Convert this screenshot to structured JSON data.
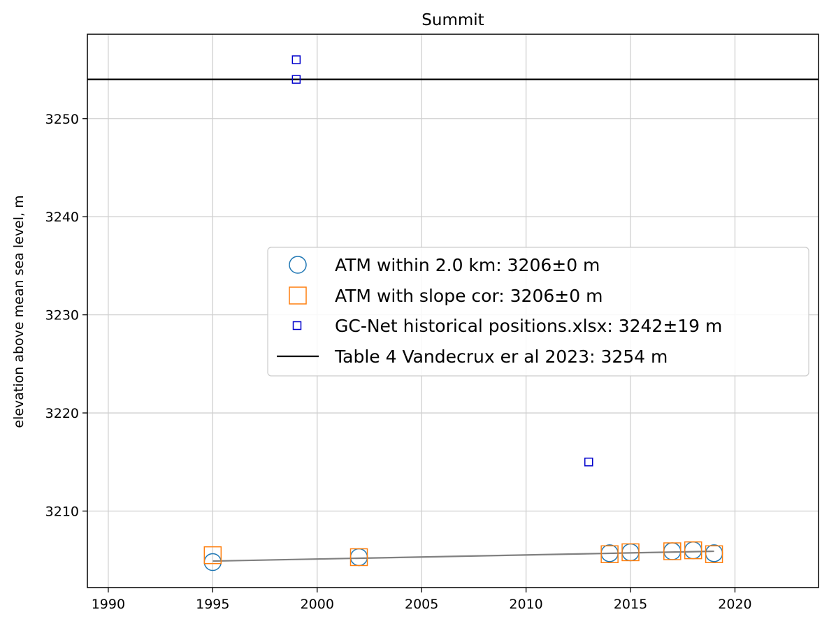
{
  "chart_data": {
    "type": "scatter",
    "title": "Summit",
    "xlabel": "",
    "ylabel": "elevation above mean sea level, m",
    "xlim": [
      1989,
      2024
    ],
    "ylim": [
      3202.2,
      3258.6
    ],
    "xticks": [
      1990,
      1995,
      2000,
      2005,
      2010,
      2015,
      2020
    ],
    "yticks": [
      3210,
      3220,
      3230,
      3240,
      3250
    ],
    "grid": true,
    "legend_position": "center-right",
    "series": [
      {
        "name": "ATM within 2.0 km: 3206±0 m",
        "marker": "circle",
        "color": "#1f77b4",
        "x": [
          1995,
          2002,
          2014,
          2015,
          2017,
          2018,
          2019
        ],
        "y": [
          3204.8,
          3205.3,
          3205.7,
          3205.8,
          3205.9,
          3206.0,
          3205.7
        ]
      },
      {
        "name": "ATM with slope cor: 3206±0 m",
        "marker": "square",
        "color": "#ff7f0e",
        "x": [
          1995,
          2002,
          2014,
          2015,
          2017,
          2018,
          2019
        ],
        "y": [
          3205.5,
          3205.3,
          3205.6,
          3205.8,
          3205.9,
          3206.0,
          3205.6
        ]
      },
      {
        "name": "GC-Net historical positions.xlsx: 3242±19 m",
        "marker": "small-square",
        "color": "#0000cc",
        "x": [
          1999,
          1999,
          2013
        ],
        "y": [
          3256.0,
          3254.0,
          3215.0
        ]
      }
    ],
    "trend_line": {
      "color": "#808080",
      "x": [
        1995,
        2019
      ],
      "y": [
        3204.9,
        3205.9
      ]
    },
    "hline": {
      "name": "Table 4 Vandecrux er al 2023: 3254 m",
      "color": "#000000",
      "y": 3254
    }
  }
}
